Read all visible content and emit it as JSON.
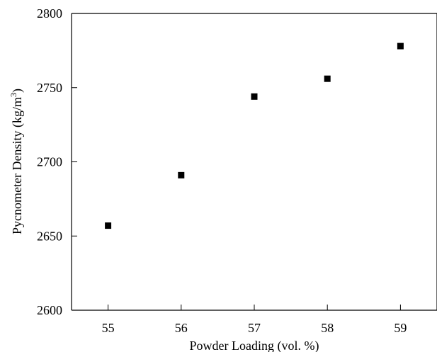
{
  "chart_data": {
    "type": "scatter",
    "title": "",
    "xlabel": "Powder Loading (vol. %)",
    "ylabel_main": "Pycnometer Density (kg/m",
    "ylabel_exp": "3",
    "ylabel_close": ")",
    "xlim": [
      54.5,
      59.5
    ],
    "ylim": [
      2600,
      2800
    ],
    "xticks": [
      55,
      56,
      57,
      58,
      59
    ],
    "yticks": [
      2600,
      2650,
      2700,
      2750,
      2800
    ],
    "xtick_labels": [
      "55",
      "56",
      "57",
      "58",
      "59"
    ],
    "ytick_labels": [
      "2600",
      "2650",
      "2700",
      "2750",
      "2800"
    ],
    "grid": false,
    "legend": "none",
    "series": [
      {
        "marker": "square",
        "color": "#000000",
        "x": [
          55,
          56,
          57,
          58,
          59
        ],
        "y": [
          2657,
          2691,
          2744,
          2756,
          2778
        ]
      }
    ]
  }
}
